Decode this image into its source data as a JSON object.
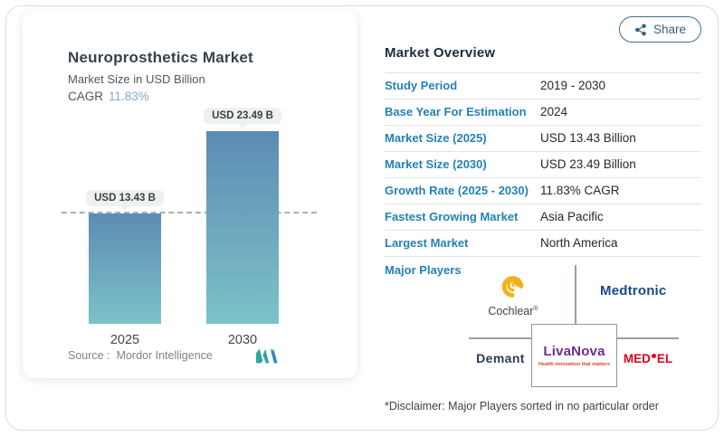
{
  "share": {
    "label": "Share"
  },
  "chart_card": {
    "title": "Neuroprosthetics Market",
    "subtitle": "Market Size in USD Billion",
    "cagr_label": "CAGR",
    "cagr_value": "11.83%",
    "source_label": "Source :",
    "source_value": "Mordor Intelligence"
  },
  "chart_data": {
    "type": "bar",
    "categories": [
      "2025",
      "2030"
    ],
    "values": [
      13.43,
      23.49
    ],
    "bar_labels": [
      "USD 13.43 B",
      "USD 23.49 B"
    ],
    "title": "Neuroprosthetics Market",
    "ylabel": "Market Size in USD Billion",
    "ylim": [
      0,
      23.49
    ],
    "grid": false,
    "legend": "none",
    "annotations": [
      "dashed horizontal reference line at 2025 value (13.43)"
    ],
    "colors": {
      "bar_top": "#5d8cb3",
      "bar_bottom": "#7cc2c8"
    }
  },
  "overview": {
    "heading": "Market Overview",
    "rows": [
      {
        "label": "Study Period",
        "value": "2019 - 2030"
      },
      {
        "label": "Base Year For Estimation",
        "value": "2024"
      },
      {
        "label": "Market Size (2025)",
        "value": "USD 13.43 Billion"
      },
      {
        "label": "Market Size (2030)",
        "value": "USD 23.49 Billion"
      },
      {
        "label": "Growth Rate (2025 - 2030)",
        "value": "11.83% CAGR"
      },
      {
        "label": "Fastest Growing Market",
        "value": "Asia Pacific"
      },
      {
        "label": "Largest Market",
        "value": "North America"
      }
    ]
  },
  "players": {
    "label": "Major Players",
    "cochlear": "Cochlear",
    "cochlear_reg": "®",
    "medtronic": "Medtronic",
    "demant": "Demant",
    "livanova": "LivaNova",
    "livanova_tagline": "Health innovation that matters",
    "medel_pre": "MED",
    "medel_post": "EL",
    "disclaimer": "*Disclaimer: Major Players sorted in no particular order"
  }
}
